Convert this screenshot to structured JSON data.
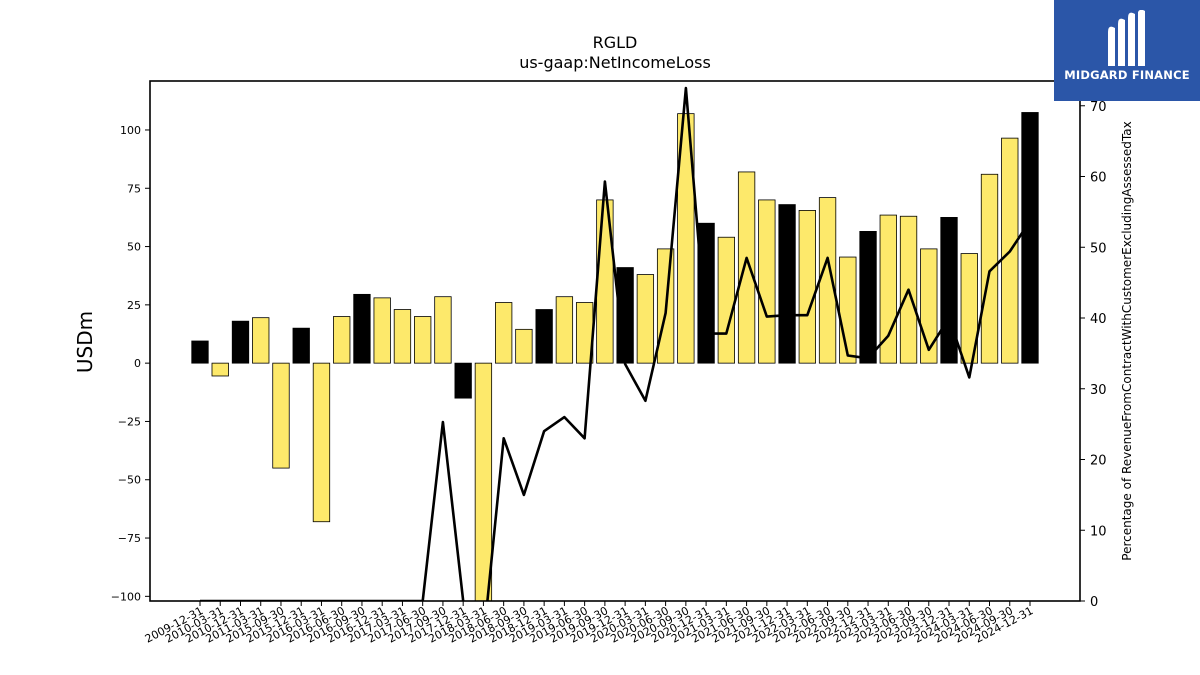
{
  "chart_data": {
    "type": "bar",
    "title": "RGLD",
    "subtitle": "us-gaap:NetIncomeLoss",
    "ylabel": "USDm",
    "y2label": "Percentage of RevenueFromContractWithCustomerExcludingAssessedTax",
    "ylim": [
      -102,
      121
    ],
    "y2lim": [
      0,
      73.5
    ],
    "yticks": [
      -100,
      -75,
      -50,
      -25,
      0,
      25,
      50,
      75,
      100
    ],
    "y2ticks": [
      0,
      10,
      20,
      30,
      40,
      50,
      60,
      70
    ],
    "categories": [
      "2009-12-31",
      "2010-03-31",
      "2010-12-31",
      "2011-03-31",
      "2015-09-30",
      "2015-12-31",
      "2016-03-31",
      "2016-06-30",
      "2016-09-30",
      "2016-12-31",
      "2017-03-31",
      "2017-06-30",
      "2017-09-30",
      "2017-12-31",
      "2018-03-31",
      "2018-06-30",
      "2018-09-30",
      "2018-12-31",
      "2019-03-31",
      "2019-06-30",
      "2019-09-30",
      "2019-12-31",
      "2020-03-31",
      "2020-06-30",
      "2020-09-30",
      "2020-12-31",
      "2021-03-31",
      "2021-06-30",
      "2021-09-30",
      "2021-12-31",
      "2022-03-31",
      "2022-06-30",
      "2022-09-30",
      "2022-12-31",
      "2023-03-31",
      "2023-06-30",
      "2023-09-30",
      "2023-12-31",
      "2024-03-31",
      "2024-06-30",
      "2024-09-30",
      "2024-12-31"
    ],
    "bar_highlight": [
      true,
      false,
      true,
      false,
      false,
      true,
      false,
      false,
      true,
      false,
      false,
      false,
      false,
      true,
      false,
      false,
      false,
      true,
      false,
      false,
      false,
      true,
      false,
      false,
      false,
      true,
      false,
      false,
      false,
      true,
      false,
      false,
      false,
      true,
      false,
      false,
      false,
      true,
      false,
      false,
      false,
      true
    ],
    "series": [
      {
        "name": "NetIncomeLoss",
        "type": "bar",
        "axis": "left",
        "values": [
          9.5,
          -5.5,
          18,
          19.5,
          -45,
          15,
          -68,
          20,
          29.5,
          28,
          23,
          20,
          28.5,
          -15,
          -106,
          26,
          14.5,
          23,
          28.5,
          26,
          70,
          41,
          38,
          49,
          107,
          60,
          54,
          82,
          70,
          68,
          65.5,
          71,
          45.5,
          56.5,
          63.5,
          63,
          49,
          62.5,
          47,
          81,
          96.5,
          107.5
        ]
      },
      {
        "name": "Percentage of Revenue",
        "type": "line",
        "axis": "right",
        "values": [
          0,
          0,
          0,
          0,
          0,
          0,
          0,
          0,
          0,
          0,
          0,
          0,
          25.3,
          0,
          null,
          23,
          15,
          24,
          26,
          23,
          59.3,
          33.5,
          28.3,
          40.7,
          72.5,
          37.8,
          37.8,
          48.5,
          40.2,
          40.4,
          40.4,
          48.5,
          34.7,
          34.3,
          37.5,
          44,
          35.5,
          40,
          31.6,
          46.6,
          49.4,
          53.7
        ]
      }
    ],
    "colors": {
      "bar_fill": "#fde96b",
      "bar_highlight": "#000000",
      "bar_edge": "#000000",
      "line": "#000000"
    }
  },
  "branding": {
    "logo_text": "MIDGARD FINANCE",
    "logo_bg": "#2b56a8"
  }
}
